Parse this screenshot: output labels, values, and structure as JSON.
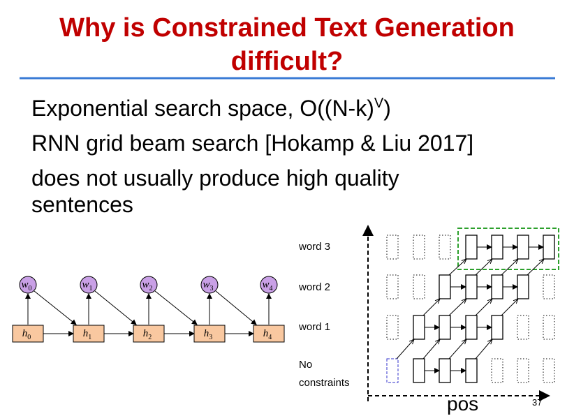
{
  "header": {
    "title_lines": [
      "Why is Constrained Text Generation",
      "difficult?"
    ]
  },
  "bullets": [
    {
      "text": "Exponential search space, O((N-k)",
      "sup": "V",
      "tail": ")"
    },
    {
      "text": "RNN grid beam search [Hokamp & Liu 2017]"
    },
    {
      "text": "does not usually produce high quality"
    },
    {
      "text": "sentences"
    }
  ],
  "rnn": {
    "outputs": [
      {
        "base": "w",
        "sub": "0"
      },
      {
        "base": "w",
        "sub": "1"
      },
      {
        "base": "w",
        "sub": "2"
      },
      {
        "base": "w",
        "sub": "3"
      },
      {
        "base": "w",
        "sub": "4"
      }
    ],
    "hidden": [
      {
        "base": "h",
        "sub": "0"
      },
      {
        "base": "h",
        "sub": "1"
      },
      {
        "base": "h",
        "sub": "2"
      },
      {
        "base": "h",
        "sub": "3"
      },
      {
        "base": "h",
        "sub": "4"
      }
    ]
  },
  "grid": {
    "rows": [
      "word 3",
      "word 2",
      "word 1",
      "No",
      "constraints"
    ],
    "x_axis": "pos"
  },
  "page_number": "37"
}
